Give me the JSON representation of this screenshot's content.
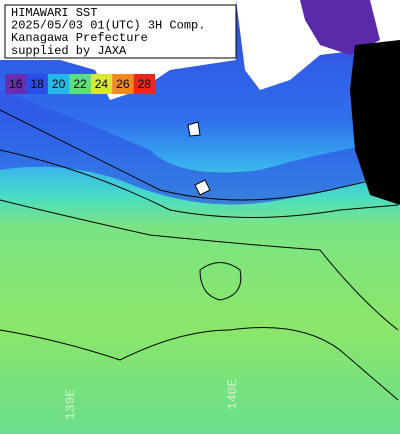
{
  "header": {
    "lines": [
      "HIMAWARI SST",
      "2025/05/03 01(UTC) 3H Comp.",
      "Kanagawa Prefecture",
      "supplied by JAXA"
    ]
  },
  "legend": {
    "labels": [
      16,
      18,
      20,
      22,
      24,
      26,
      28
    ],
    "colors": [
      "#6a2cb0",
      "#2a4de8",
      "#27b8e8",
      "#5ce07a",
      "#d8e832",
      "#f08a1e",
      "#e8281e"
    ]
  },
  "map": {
    "longitude_labels": [
      "139E",
      "140E"
    ]
  }
}
